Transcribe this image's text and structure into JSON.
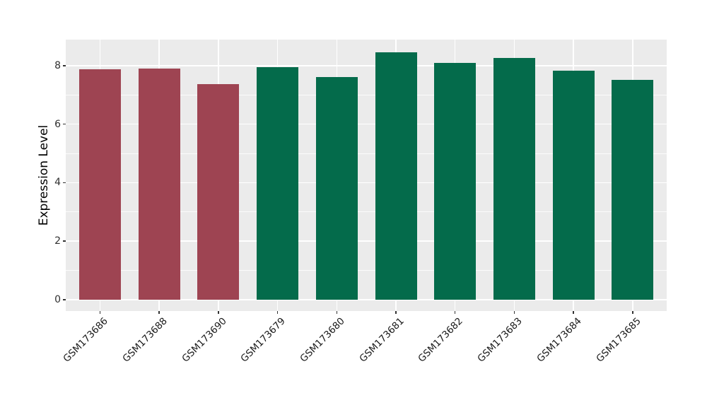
{
  "chart_data": {
    "type": "bar",
    "title": "",
    "xlabel": "",
    "ylabel": "Expression Level",
    "categories": [
      "GSM173686",
      "GSM173688",
      "GSM173690",
      "GSM173679",
      "GSM173680",
      "GSM173681",
      "GSM173682",
      "GSM173683",
      "GSM173684",
      "GSM173685"
    ],
    "values": [
      7.87,
      7.9,
      7.36,
      7.95,
      7.61,
      8.45,
      8.1,
      8.26,
      7.82,
      7.52
    ],
    "bar_groups": [
      "red",
      "red",
      "red",
      "green",
      "green",
      "green",
      "green",
      "green",
      "green",
      "green"
    ],
    "group_colors": {
      "red": "#9E4452",
      "green": "#046B4B"
    },
    "yticks": [
      0,
      2,
      4,
      6,
      8
    ],
    "yminorticks": [
      1,
      3,
      5,
      7
    ],
    "ylim": [
      -0.35,
      8.9
    ],
    "grid": true,
    "legend_position": "none",
    "panel_background": "#EBEBEB",
    "grid_color": "#FFFFFF",
    "axis_text_color": "#303030",
    "bar_width_fraction": 0.7
  }
}
